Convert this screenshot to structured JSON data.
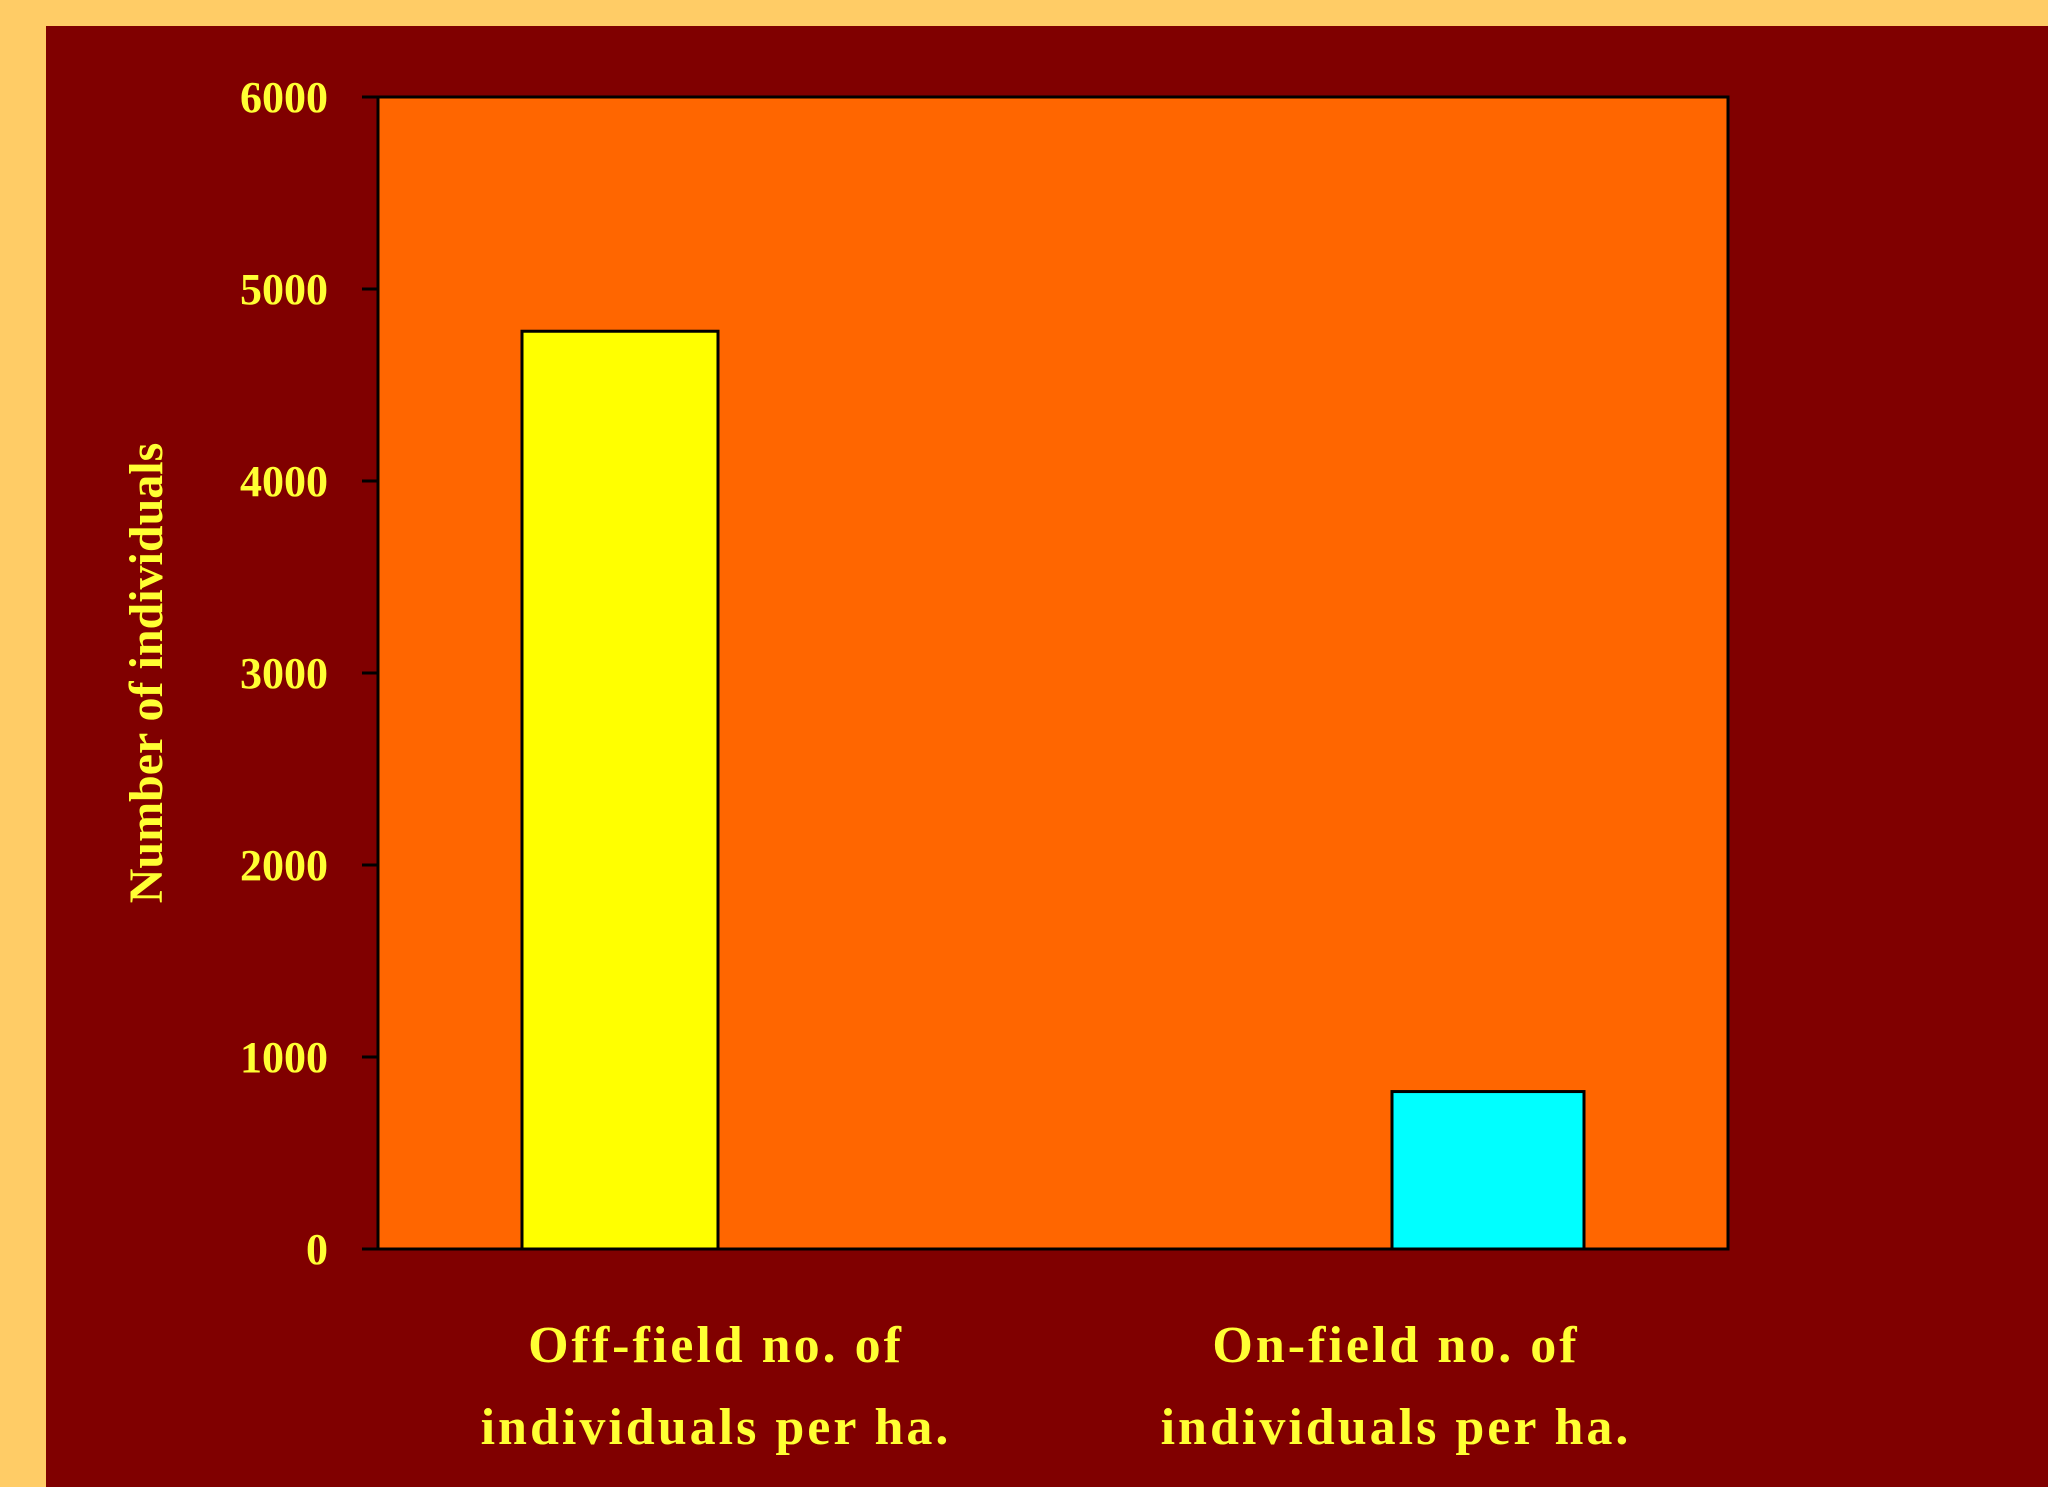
{
  "chart_data": {
    "type": "bar",
    "categories": [
      [
        "Off-field no. of",
        "individuals per ha."
      ],
      [
        "On-field no. of",
        "individuals per ha."
      ]
    ],
    "values": [
      4780,
      820
    ],
    "bar_colors": [
      "#ffff00",
      "#00ffff"
    ],
    "title": "",
    "xlabel": "",
    "ylabel": "Number of individuals",
    "ylim": [
      0,
      6000
    ],
    "yticks": [
      0,
      1000,
      2000,
      3000,
      4000,
      5000,
      6000
    ],
    "grid": false,
    "legend": "none"
  },
  "colors": {
    "page_background": "#ffcc66",
    "panel_background": "#800000",
    "plot_background": "#ff6600",
    "text": "#ffff33",
    "bar_outline": "#000000"
  }
}
